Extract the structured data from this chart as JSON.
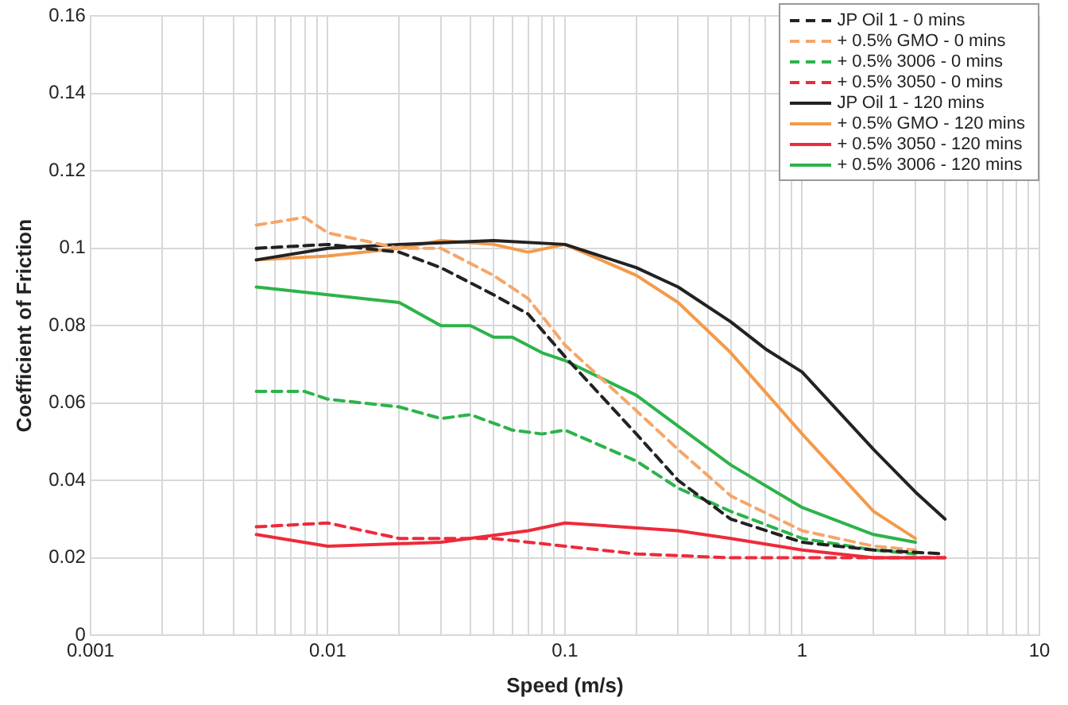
{
  "chart_data": {
    "type": "line",
    "xlabel": "Speed (m/s)",
    "ylabel": "Coefficient of Friction",
    "log": "x",
    "xlim": [
      0.001,
      10
    ],
    "ylim": [
      0,
      0.16
    ],
    "xticks": [
      0.001,
      {
        "value": 0.002,
        "label": null
      },
      {
        "value": 0.003,
        "label": null
      },
      {
        "value": 0.004,
        "label": null
      },
      {
        "value": 0.005,
        "label": null
      },
      {
        "value": 0.006,
        "label": null
      },
      {
        "value": 0.007,
        "label": null
      },
      {
        "value": 0.008,
        "label": null
      },
      {
        "value": 0.009,
        "label": null
      },
      0.01,
      {
        "value": 0.02,
        "label": null
      },
      {
        "value": 0.03,
        "label": null
      },
      {
        "value": 0.04,
        "label": null
      },
      {
        "value": 0.05,
        "label": null
      },
      {
        "value": 0.06,
        "label": null
      },
      {
        "value": 0.07,
        "label": null
      },
      {
        "value": 0.08,
        "label": null
      },
      {
        "value": 0.09,
        "label": null
      },
      0.1,
      {
        "value": 0.2,
        "label": null
      },
      {
        "value": 0.3,
        "label": null
      },
      {
        "value": 0.4,
        "label": null
      },
      {
        "value": 0.5,
        "label": null
      },
      {
        "value": 0.6,
        "label": null
      },
      {
        "value": 0.7,
        "label": null
      },
      {
        "value": 0.8,
        "label": null
      },
      {
        "value": 0.9,
        "label": null
      },
      1,
      {
        "value": 2,
        "label": null
      },
      {
        "value": 3,
        "label": null
      },
      {
        "value": 4,
        "label": null
      },
      {
        "value": 5,
        "label": null
      },
      {
        "value": 6,
        "label": null
      },
      {
        "value": 7,
        "label": null
      },
      {
        "value": 8,
        "label": null
      },
      {
        "value": 9,
        "label": null
      },
      10
    ],
    "yticks": [
      0,
      0.02,
      0.04,
      0.06,
      0.08,
      0.1,
      0.12,
      0.14,
      0.16
    ],
    "grid": true,
    "legend": "top right",
    "marker": "none",
    "series": [
      {
        "name": "JP Oil 1 - 0 mins",
        "color": "#222222",
        "line_style": "dashed",
        "x": [
          0.005,
          0.01,
          0.02,
          0.03,
          0.05,
          0.07,
          0.1,
          0.2,
          0.3,
          0.5,
          1,
          2,
          4
        ],
        "values": [
          0.1,
          0.101,
          0.099,
          0.095,
          0.088,
          0.083,
          0.072,
          0.052,
          0.04,
          0.03,
          0.024,
          0.022,
          0.021
        ]
      },
      {
        "name": "+ 0.5% GMO - 0 mins",
        "color": "#f5a66a",
        "line_style": "dashed",
        "x": [
          0.005,
          0.008,
          0.01,
          0.02,
          0.03,
          0.05,
          0.07,
          0.1,
          0.2,
          0.3,
          0.5,
          1,
          2,
          3
        ],
        "values": [
          0.106,
          0.108,
          0.104,
          0.1,
          0.1,
          0.093,
          0.087,
          0.075,
          0.058,
          0.048,
          0.036,
          0.027,
          0.023,
          0.022
        ]
      },
      {
        "name": "+ 0.5% 3006 - 0 mins",
        "color": "#2db34a",
        "line_style": "dashed",
        "x": [
          0.005,
          0.008,
          0.01,
          0.02,
          0.03,
          0.04,
          0.06,
          0.08,
          0.1,
          0.2,
          0.3,
          0.5,
          1,
          2,
          3
        ],
        "values": [
          0.063,
          0.063,
          0.061,
          0.059,
          0.056,
          0.057,
          0.053,
          0.052,
          0.053,
          0.045,
          0.038,
          0.032,
          0.025,
          0.022,
          0.021
        ]
      },
      {
        "name": "+ 0.5% 3050 - 0 mins",
        "color": "#ee2a3a",
        "line_style": "dashed",
        "x": [
          0.005,
          0.01,
          0.02,
          0.05,
          0.1,
          0.2,
          0.5,
          1,
          4
        ],
        "values": [
          0.028,
          0.029,
          0.025,
          0.025,
          0.023,
          0.021,
          0.02,
          0.02,
          0.02
        ]
      },
      {
        "name": "JP Oil 1 - 120 mins",
        "color": "#222222",
        "line_style": "solid",
        "x": [
          0.005,
          0.01,
          0.02,
          0.05,
          0.1,
          0.2,
          0.3,
          0.5,
          0.7,
          1,
          2,
          3,
          4
        ],
        "values": [
          0.097,
          0.1,
          0.101,
          0.102,
          0.101,
          0.095,
          0.09,
          0.081,
          0.074,
          0.068,
          0.048,
          0.037,
          0.03
        ]
      },
      {
        "name": "+ 0.5% GMO - 120 mins",
        "color": "#f39a4a",
        "line_style": "solid",
        "x": [
          0.005,
          0.01,
          0.02,
          0.03,
          0.05,
          0.07,
          0.1,
          0.2,
          0.3,
          0.5,
          1,
          2,
          3
        ],
        "values": [
          0.097,
          0.098,
          0.1,
          0.102,
          0.101,
          0.099,
          0.101,
          0.093,
          0.086,
          0.073,
          0.052,
          0.032,
          0.025
        ]
      },
      {
        "name": "+ 0.5% 3050 - 120 mins",
        "color": "#ee2a3a",
        "line_style": "solid",
        "x": [
          0.005,
          0.01,
          0.03,
          0.07,
          0.1,
          0.3,
          0.5,
          1,
          2,
          4
        ],
        "values": [
          0.026,
          0.023,
          0.024,
          0.027,
          0.029,
          0.027,
          0.025,
          0.022,
          0.02,
          0.02
        ]
      },
      {
        "name": "+ 0.5% 3006 - 120 mins",
        "color": "#2db34a",
        "line_style": "solid",
        "x": [
          0.005,
          0.01,
          0.02,
          0.03,
          0.04,
          0.05,
          0.06,
          0.08,
          0.1,
          0.2,
          0.5,
          1,
          2,
          3
        ],
        "values": [
          0.09,
          0.088,
          0.086,
          0.08,
          0.08,
          0.077,
          0.077,
          0.073,
          0.071,
          0.062,
          0.044,
          0.033,
          0.026,
          0.024
        ]
      }
    ]
  }
}
